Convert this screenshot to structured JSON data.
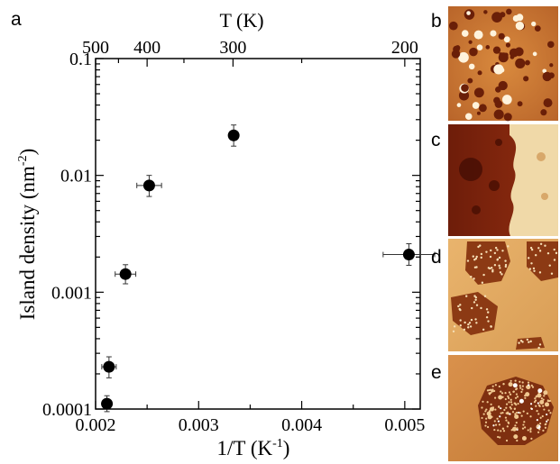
{
  "chart_data": {
    "type": "scatter",
    "panel_label": "a",
    "xlabel": "1/T (K",
    "xlabel_sup": "-1",
    "xlabel_end": ")",
    "ylabel": "Island density (nm",
    "ylabel_sup": "-2",
    "ylabel_end": ")",
    "top_axis_label": "T (K)",
    "y_scale": "log",
    "xlim": [
      0.002,
      0.00515
    ],
    "ylim": [
      0.0001,
      0.1
    ],
    "x_ticks": [
      {
        "value": 0.002,
        "label": "0.002"
      },
      {
        "value": 0.003,
        "label": "0.003"
      },
      {
        "value": 0.004,
        "label": "0.004"
      },
      {
        "value": 0.005,
        "label": "0.005"
      }
    ],
    "y_ticks": [
      {
        "value": 0.0001,
        "label": "0.0001"
      },
      {
        "value": 0.001,
        "label": "0.001"
      },
      {
        "value": 0.01,
        "label": "0.01"
      },
      {
        "value": 0.1,
        "label": "0.1"
      }
    ],
    "top_ticks": [
      {
        "T": 500,
        "label": "500"
      },
      {
        "T": 400,
        "label": "400"
      },
      {
        "T": 300,
        "label": "300"
      },
      {
        "T": 200,
        "label": "200"
      }
    ],
    "grid": false,
    "marker_color": "#000000",
    "points": [
      {
        "x": 0.00211,
        "y": 0.000111,
        "x_err": 4e-05,
        "y_low": 9.5e-05,
        "y_high": 0.00013
      },
      {
        "x": 0.00213,
        "y": 0.00023,
        "x_err": 7e-05,
        "y_low": 0.000185,
        "y_high": 0.00028
      },
      {
        "x": 0.00229,
        "y": 0.00143,
        "x_err": 0.0001,
        "y_low": 0.00118,
        "y_high": 0.00172
      },
      {
        "x": 0.00252,
        "y": 0.0082,
        "x_err": 0.00012,
        "y_low": 0.0066,
        "y_high": 0.01
      },
      {
        "x": 0.00334,
        "y": 0.022,
        "x_err": 2e-05,
        "y_low": 0.0178,
        "y_high": 0.027
      },
      {
        "x": 0.00504,
        "y": 0.0021,
        "x_err": 0.00025,
        "y_low": 0.0017,
        "y_high": 0.0026
      }
    ]
  },
  "images": [
    {
      "label": "b",
      "style": "dense-islands"
    },
    {
      "label": "c",
      "style": "step-edge"
    },
    {
      "label": "d",
      "style": "large-islands"
    },
    {
      "label": "e",
      "style": "single-island"
    }
  ]
}
